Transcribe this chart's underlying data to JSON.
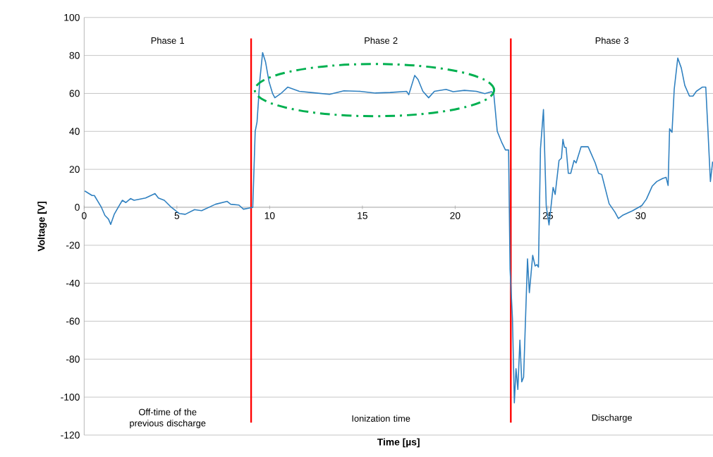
{
  "chart_data": {
    "type": "line",
    "xlabel": "Time [µs]",
    "ylabel": "Voltage [V]",
    "xlim": [
      0,
      33.9
    ],
    "ylim": [
      -120,
      100
    ],
    "xticks": [
      0,
      5,
      10,
      15,
      20,
      25,
      30
    ],
    "yticks": [
      -120,
      -100,
      -80,
      -60,
      -40,
      -20,
      0,
      20,
      40,
      60,
      80,
      100
    ],
    "grid": "y",
    "series": [
      {
        "color": "#2f80c0",
        "x": [
          0.03,
          0.43,
          0.55,
          0.93,
          1.12,
          1.31,
          1.43,
          1.62,
          1.87,
          2.06,
          2.25,
          2.5,
          2.69,
          3.31,
          3.82,
          4.0,
          4.32,
          4.7,
          5.13,
          5.45,
          5.95,
          6.33,
          7.08,
          7.71,
          7.9,
          8.34,
          8.59,
          8.9,
          9.09,
          9.22,
          9.32,
          9.47,
          9.62,
          9.78,
          9.97,
          10.16,
          10.28,
          10.6,
          10.97,
          11.6,
          12.4,
          13.23,
          14.0,
          14.87,
          15.7,
          16.5,
          17.38,
          17.5,
          17.82,
          18.0,
          18.26,
          18.57,
          18.88,
          19.51,
          19.89,
          20.5,
          21.14,
          21.6,
          21.96,
          22.08,
          22.27,
          22.52,
          22.71,
          22.88,
          22.96,
          23.09,
          23.19,
          23.28,
          23.38,
          23.49,
          23.59,
          23.69,
          23.9,
          24.0,
          24.18,
          24.31,
          24.41,
          24.49,
          24.6,
          24.76,
          24.91,
          25.06,
          25.28,
          25.39,
          25.6,
          25.73,
          25.81,
          25.89,
          25.98,
          26.1,
          26.23,
          26.41,
          26.52,
          26.79,
          27.17,
          27.55,
          27.73,
          27.9,
          28.3,
          28.61,
          28.8,
          29.05,
          29.55,
          30.06,
          30.31,
          30.62,
          30.87,
          31.19,
          31.37,
          31.48,
          31.56,
          31.69,
          31.81,
          32.0,
          32.19,
          32.38,
          32.63,
          32.82,
          33.0,
          33.32,
          33.51,
          33.63,
          33.76,
          33.88
        ],
        "values": [
          8.6,
          6.2,
          6.2,
          0,
          -4.3,
          -6.2,
          -9,
          -3.7,
          0.6,
          3.7,
          2.5,
          4.6,
          3.7,
          4.9,
          7.2,
          4.9,
          3.7,
          0,
          -3.3,
          -3.7,
          -1.2,
          -1.8,
          1.6,
          3.1,
          1.6,
          1.2,
          -1,
          -0.4,
          0,
          40,
          45,
          67,
          81.5,
          76.5,
          66,
          59.9,
          57.7,
          59.9,
          63.3,
          61.1,
          60.3,
          59.5,
          61.4,
          61.1,
          60.2,
          60.5,
          61.1,
          59.3,
          69.5,
          67.3,
          61.1,
          57.7,
          61.1,
          62.1,
          60.9,
          61.6,
          61.1,
          59.9,
          60.9,
          59.9,
          40,
          34,
          30.2,
          30.2,
          -32.7,
          -58.6,
          -103,
          -85,
          -96,
          -70,
          -92,
          -89.5,
          -27.2,
          -45,
          -25.3,
          -30.9,
          -30.2,
          -31.5,
          30.9,
          51.5,
          0.6,
          -9.3,
          10.5,
          6.8,
          24.7,
          25.9,
          35.8,
          31.7,
          31.5,
          17.9,
          17.9,
          24.7,
          23.4,
          31.9,
          31.9,
          23.4,
          17.9,
          17.3,
          1.9,
          -2.5,
          -5.9,
          -4.1,
          -1.9,
          0.9,
          4.3,
          11.1,
          13.6,
          15.2,
          15.8,
          11.5,
          41.4,
          39.5,
          62.3,
          78.6,
          73.4,
          64.2,
          58.6,
          58.6,
          61.1,
          63.3,
          63.3,
          40,
          13.6,
          24.1
        ]
      }
    ],
    "ref_lines": [
      {
        "axis": "x",
        "value": 9,
        "color": "#ff0000"
      },
      {
        "axis": "x",
        "value": 23,
        "color": "#ff0000"
      }
    ],
    "annotations": [
      "Phase 1",
      "Phase 2",
      "Phase 3",
      "Off-time of the previous discharge",
      "Ionization time",
      "Discharge"
    ]
  }
}
